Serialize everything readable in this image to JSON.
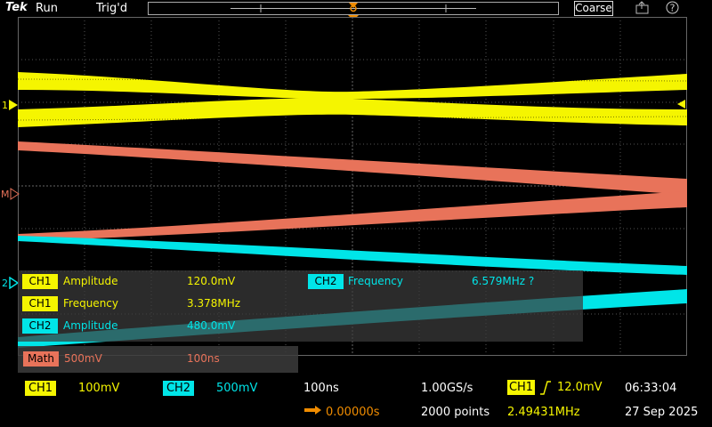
{
  "topbar": {
    "brand": "Tek",
    "run_state": "Run",
    "trigger_state": "Trig'd",
    "coarse_label": "Coarse"
  },
  "colors": {
    "ch1": "#f5f500",
    "ch2": "#00e5e8",
    "math": "#e8735a",
    "trigger": "#f08c00",
    "grid": "#4a4a4a"
  },
  "markers": {
    "ch1": "1",
    "math": "M",
    "ch2": "2",
    "trigger": "T"
  },
  "measurements": {
    "row1": {
      "badge": "CH1",
      "name": "Amplitude",
      "value": "120.0mV"
    },
    "row2": {
      "badge": "CH1",
      "name": "Frequency",
      "value": "3.378MHz"
    },
    "row3": {
      "badge": "CH2",
      "name": "Amplitude",
      "value": "480.0mV"
    },
    "row4": {
      "badge": "CH2",
      "name": "Frequency",
      "value": "6.579MHz ?"
    }
  },
  "math_panel": {
    "badge": "Math",
    "scale": "500mV",
    "time": "100ns"
  },
  "status": {
    "ch1_badge": "CH1",
    "ch1_scale": "100mV",
    "ch2_badge": "CH2",
    "ch2_scale": "500mV",
    "timebase": "100ns",
    "sample_rate": "1.00GS/s",
    "points": "2000 points",
    "trigger_badge": "CH1",
    "trigger_level": "12.0mV",
    "trigger_freq": "2.49431MHz",
    "delay": "0.00000s",
    "time": "06:33:04",
    "date": "27 Sep 2025"
  }
}
